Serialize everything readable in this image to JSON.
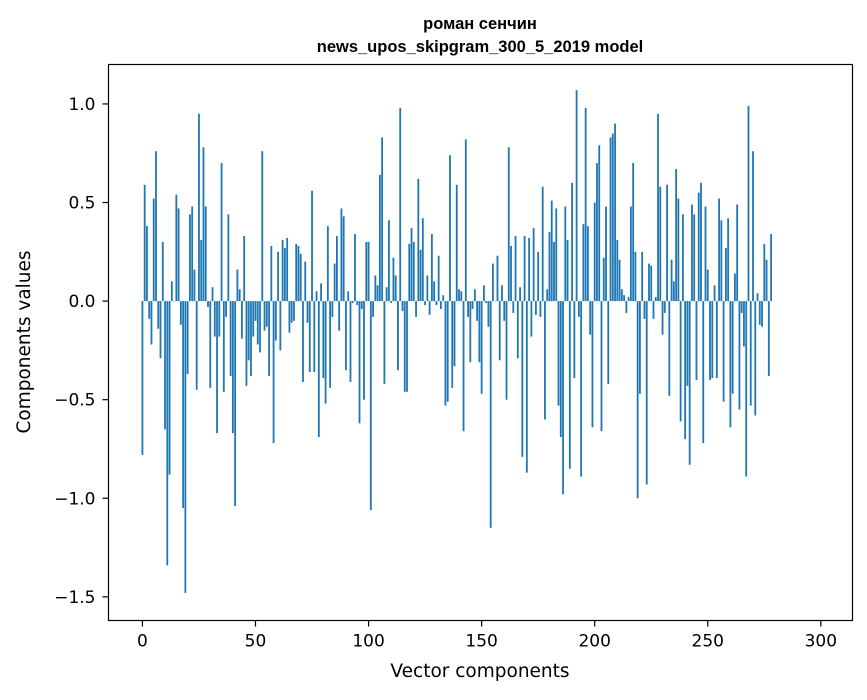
{
  "chart_data": {
    "type": "bar",
    "title_lines": [
      "роман сенчин",
      "news_upos_skipgram_300_5_2019 model"
    ],
    "xlabel": "Vector components",
    "ylabel": "Components values",
    "xlim": [
      -15,
      314
    ],
    "ylim": [
      -1.62,
      1.2
    ],
    "xticks": [
      0,
      50,
      100,
      150,
      200,
      250,
      300
    ],
    "xtick_labels": [
      "0",
      "50",
      "100",
      "150",
      "200",
      "250",
      "300"
    ],
    "yticks": [
      -1.5,
      -1.0,
      -0.5,
      0.0,
      0.5,
      1.0
    ],
    "ytick_labels": [
      "−1.5",
      "−1.0",
      "−0.5",
      "0.0",
      "0.5",
      "1.0"
    ],
    "bar_color": "#1f77b4",
    "bar_width": 0.8,
    "grid": false,
    "series": [
      {
        "name": "components",
        "values": [
          -0.78,
          0.59,
          0.38,
          -0.09,
          -0.22,
          0.52,
          0.76,
          -0.14,
          -0.29,
          0.3,
          -0.65,
          -1.34,
          -0.88,
          0.1,
          0.0,
          0.54,
          0.47,
          -0.12,
          -1.05,
          -1.48,
          -0.37,
          0.44,
          0.48,
          0.16,
          -0.45,
          0.95,
          0.31,
          0.78,
          0.48,
          -0.03,
          -0.44,
          0.07,
          -0.18,
          -0.67,
          -0.18,
          0.7,
          -0.46,
          -0.08,
          0.44,
          -0.38,
          -0.67,
          -1.04,
          0.16,
          0.06,
          -0.19,
          0.33,
          -0.43,
          -0.3,
          -0.38,
          -0.18,
          -0.1,
          -0.22,
          -0.26,
          0.76,
          -0.15,
          -0.13,
          -0.38,
          0.28,
          -0.72,
          -0.2,
          0.25,
          -0.25,
          0.31,
          0.27,
          0.32,
          -0.16,
          -0.11,
          -0.1,
          0.29,
          0.28,
          0.24,
          -0.41,
          0.2,
          -0.11,
          -0.36,
          0.56,
          -0.36,
          0.05,
          -0.69,
          0.09,
          -0.39,
          -0.52,
          0.38,
          -0.44,
          -0.08,
          0.19,
          0.33,
          -0.15,
          0.47,
          0.43,
          -0.35,
          0.05,
          -0.41,
          -0.01,
          0.34,
          -0.02,
          -0.62,
          -0.04,
          -0.5,
          0.3,
          0.3,
          -1.06,
          -0.08,
          0.13,
          0.08,
          0.64,
          0.83,
          -0.42,
          0.07,
          0.41,
          -0.01,
          0.22,
          0.13,
          -0.35,
          0.98,
          -0.05,
          -0.46,
          -0.46,
          0.29,
          0.37,
          0.3,
          -0.08,
          0.62,
          0.26,
          0.42,
          -0.02,
          0.13,
          -0.07,
          0.34,
          0.1,
          -0.02,
          0.23,
          -0.04,
          0.03,
          -0.53,
          -0.51,
          0.74,
          -0.44,
          -0.33,
          0.59,
          0.06,
          0.05,
          -0.66,
          0.82,
          -0.08,
          -0.31,
          -0.04,
          0.06,
          -0.1,
          -0.31,
          -0.47,
          0.08,
          -0.01,
          -0.13,
          -1.15,
          0.19,
          0.0,
          0.23,
          -0.3,
          0.08,
          -0.1,
          -0.5,
          0.78,
          0.28,
          -0.06,
          0.33,
          -0.29,
          0.07,
          -0.79,
          0.33,
          -0.87,
          0.32,
          -0.18,
          0.37,
          -0.07,
          0.25,
          -0.08,
          0.58,
          -0.6,
          0.06,
          0.35,
          0.51,
          0.3,
          0.47,
          -0.53,
          -0.69,
          -0.98,
          0.48,
          0.31,
          -0.85,
          0.6,
          -0.39,
          1.07,
          -0.08,
          -0.89,
          0.39,
          0.98,
          0.38,
          -0.17,
          -0.64,
          0.5,
          0.7,
          0.79,
          -0.66,
          0.22,
          0.48,
          -0.42,
          0.83,
          0.85,
          0.9,
          0.31,
          0.21,
          0.06,
          0.03,
          -0.06,
          0.02,
          0.48,
          0.7,
          0.25,
          -1.0,
          -0.47,
          0.25,
          -0.09,
          -0.93,
          0.19,
          0.18,
          -0.09,
          0.02,
          0.95,
          0.58,
          -0.17,
          -0.06,
          0.59,
          -0.48,
          0.21,
          0.1,
          0.67,
          0.52,
          -0.61,
          0.44,
          -0.7,
          -0.43,
          -0.83,
          0.49,
          0.44,
          -0.4,
          0.55,
          0.6,
          -0.72,
          0.48,
          0.16,
          -0.4,
          -0.39,
          0.08,
          -0.39,
          0.52,
          0.41,
          -0.51,
          0.27,
          0.42,
          -0.64,
          -0.47,
          0.14,
          0.49,
          -0.55,
          -0.06,
          -0.23,
          -0.89,
          0.99,
          -0.53,
          0.76,
          -0.58,
          0.04,
          -0.12,
          -0.13,
          0.29,
          0.21,
          -0.38,
          0.34
        ]
      }
    ]
  }
}
